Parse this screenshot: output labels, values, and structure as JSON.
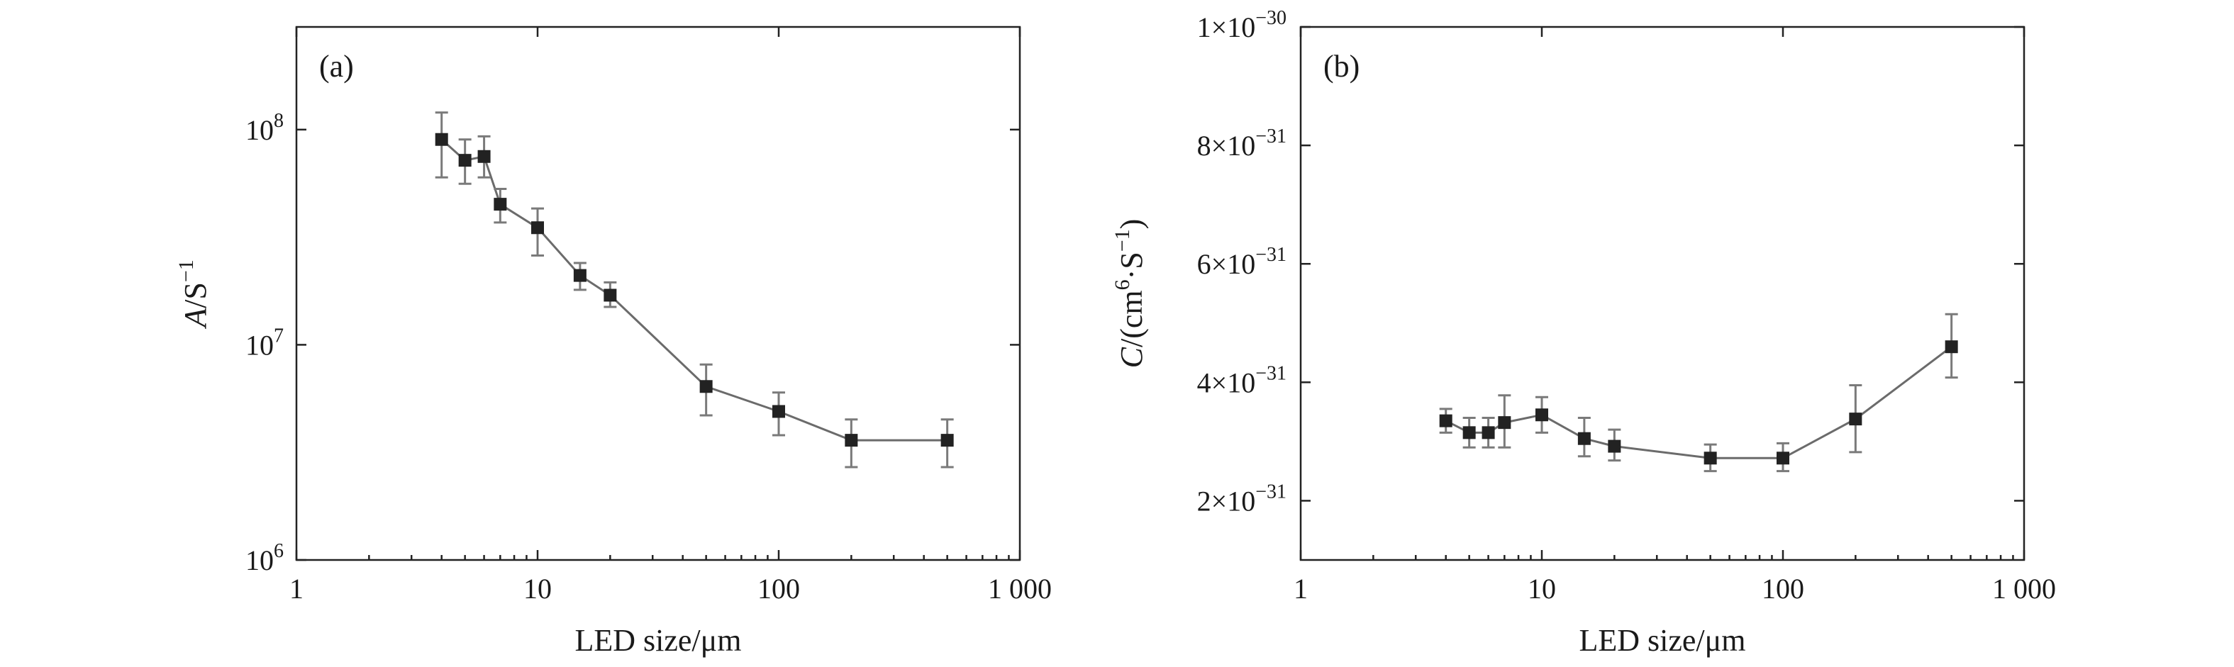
{
  "chart_data": [
    {
      "panel": "(a)",
      "type": "scatter",
      "connected": true,
      "error_bars": true,
      "xscale": "log",
      "yscale": "log",
      "xlim": [
        1,
        1000
      ],
      "ylim": [
        1000000,
        300000000
      ],
      "xlabel": "LED size/μm",
      "ylabel": {
        "var": "A",
        "unit": "/S",
        "exp": "−1"
      },
      "xticks": [
        {
          "value": 1,
          "label": "1"
        },
        {
          "value": 10,
          "label": "10"
        },
        {
          "value": 100,
          "label": "100"
        },
        {
          "value": 1000,
          "label": "1 000"
        }
      ],
      "yticks": [
        {
          "value": 1000000,
          "base": "10",
          "exp": "6"
        },
        {
          "value": 10000000,
          "base": "10",
          "exp": "7"
        },
        {
          "value": 100000000,
          "base": "10",
          "exp": "8"
        }
      ],
      "x": [
        4,
        5,
        6,
        7,
        10,
        15,
        20,
        50,
        100,
        200,
        500
      ],
      "y": [
        90000000,
        72000000,
        75000000,
        45000000,
        35000000,
        21000000,
        17000000,
        6400000,
        4900000,
        3600000,
        3600000
      ],
      "y_low": [
        60000000,
        56000000,
        60000000,
        37000000,
        26000000,
        18000000,
        15000000,
        4700000,
        3800000,
        2700000,
        2700000
      ],
      "y_high": [
        120000000,
        90000000,
        93000000,
        53000000,
        43000000,
        24000000,
        19500000,
        8100000,
        6000000,
        4500000,
        4500000
      ]
    },
    {
      "panel": "(b)",
      "type": "scatter",
      "connected": true,
      "error_bars": true,
      "xscale": "log",
      "yscale": "linear",
      "xlim": [
        1,
        1000
      ],
      "ylim": [
        1e-31,
        1e-30
      ],
      "xlabel": "LED size/μm",
      "ylabel": {
        "var": "C",
        "unit_open": "/(cm",
        "unit_exp1": "6",
        "unit_mid": "·S",
        "unit_exp2": "−1",
        "unit_close": ")"
      },
      "xticks": [
        {
          "value": 1,
          "label": "1"
        },
        {
          "value": 10,
          "label": "10"
        },
        {
          "value": 100,
          "label": "100"
        },
        {
          "value": 1000,
          "label": "1 000"
        }
      ],
      "yticks": [
        {
          "value": 2e-31,
          "mant": "2×10",
          "exp": "−31"
        },
        {
          "value": 4e-31,
          "mant": "4×10",
          "exp": "−31"
        },
        {
          "value": 6e-31,
          "mant": "6×10",
          "exp": "−31"
        },
        {
          "value": 8e-31,
          "mant": "8×10",
          "exp": "−31"
        },
        {
          "value": 1e-30,
          "mant": "1×10",
          "exp": "−30"
        }
      ],
      "x": [
        4,
        5,
        6,
        7,
        10,
        15,
        20,
        50,
        100,
        200,
        500
      ],
      "y": [
        3.35e-31,
        3.15e-31,
        3.15e-31,
        3.32e-31,
        3.45e-31,
        3.05e-31,
        2.92e-31,
        2.72e-31,
        2.72e-31,
        3.38e-31,
        4.6e-31
      ],
      "y_low": [
        3.15e-31,
        2.9e-31,
        2.9e-31,
        2.9e-31,
        3.15e-31,
        2.75e-31,
        2.68e-31,
        2.5e-31,
        2.5e-31,
        2.82e-31,
        4.08e-31
      ],
      "y_high": [
        3.55e-31,
        3.4e-31,
        3.4e-31,
        3.78e-31,
        3.75e-31,
        3.4e-31,
        3.2e-31,
        2.95e-31,
        2.97e-31,
        3.95e-31,
        5.15e-31
      ]
    }
  ]
}
